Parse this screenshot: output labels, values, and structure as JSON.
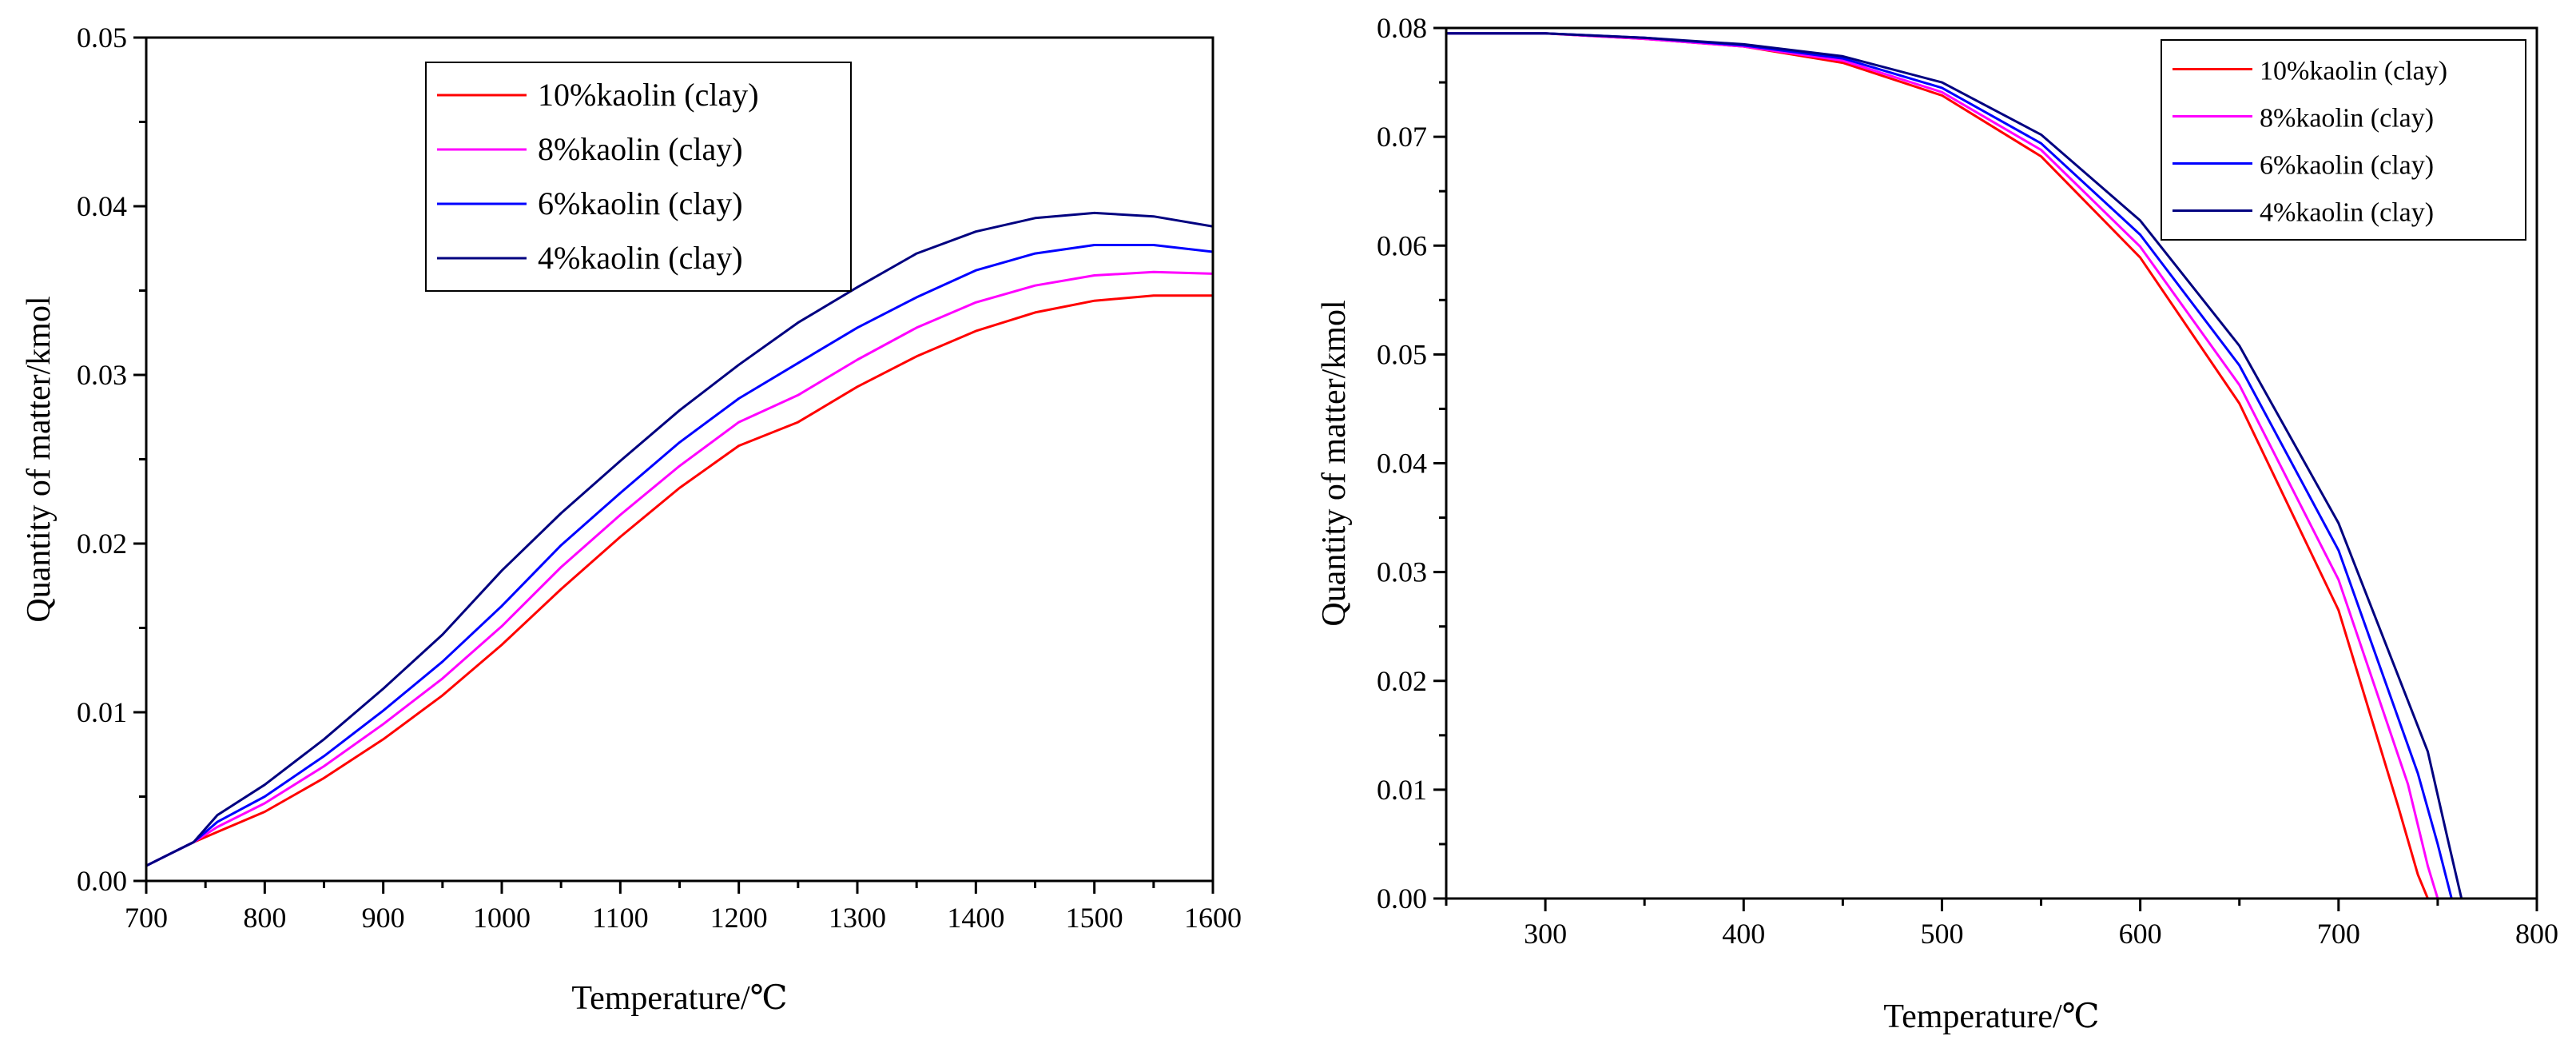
{
  "chart_data": [
    {
      "type": "line",
      "xlabel": "Temperature/℃",
      "ylabel": "Quantity of matter/kmol",
      "xlim": [
        700,
        1600
      ],
      "ylim": [
        0.0,
        0.05
      ],
      "xticks": [
        700,
        800,
        900,
        1000,
        1100,
        1200,
        1300,
        1400,
        1500,
        1600
      ],
      "xtick_labels": [
        "700",
        "800",
        "900",
        "1000",
        "1100",
        "1200",
        "1300",
        "1400",
        "1500",
        "1600"
      ],
      "yticks": [
        0.0,
        0.01,
        0.02,
        0.03,
        0.04,
        0.05
      ],
      "ytick_labels": [
        "0.00",
        "0.01",
        "0.02",
        "0.03",
        "0.04",
        "0.05"
      ],
      "legend_position": "top-center",
      "x": [
        700,
        720,
        740,
        760,
        800,
        850,
        900,
        950,
        1000,
        1050,
        1100,
        1150,
        1200,
        1250,
        1300,
        1350,
        1400,
        1450,
        1500,
        1550,
        1600
      ],
      "series": [
        {
          "name": "10%kaolin (clay)",
          "color": "#ff0000",
          "values": [
            0.0009,
            0.0016,
            0.0023,
            0.0029,
            0.0041,
            0.0061,
            0.0084,
            0.011,
            0.014,
            0.0173,
            0.0204,
            0.0233,
            0.0258,
            0.0272,
            0.0293,
            0.0311,
            0.0326,
            0.0337,
            0.0344,
            0.0347,
            0.0347
          ]
        },
        {
          "name": "8%kaolin (clay)",
          "color": "#ff00ff",
          "values": [
            0.0009,
            0.0016,
            0.0023,
            0.0032,
            0.0046,
            0.0068,
            0.0093,
            0.012,
            0.0151,
            0.0186,
            0.0217,
            0.0246,
            0.0272,
            0.0288,
            0.0309,
            0.0328,
            0.0343,
            0.0353,
            0.0359,
            0.0361,
            0.036
          ]
        },
        {
          "name": "6%kaolin (clay)",
          "color": "#0000ff",
          "values": [
            0.0009,
            0.0016,
            0.0023,
            0.0035,
            0.005,
            0.0074,
            0.0101,
            0.013,
            0.0163,
            0.0199,
            0.023,
            0.026,
            0.0286,
            0.0307,
            0.0328,
            0.0346,
            0.0362,
            0.0372,
            0.0377,
            0.0377,
            0.0373
          ]
        },
        {
          "name": "4%kaolin (clay)",
          "color": "#000080",
          "values": [
            0.0009,
            0.0016,
            0.0023,
            0.0039,
            0.0057,
            0.0084,
            0.0114,
            0.0146,
            0.0184,
            0.0218,
            0.0249,
            0.0279,
            0.0306,
            0.0331,
            0.0352,
            0.0372,
            0.0385,
            0.0393,
            0.0396,
            0.0394,
            0.0388
          ]
        }
      ]
    },
    {
      "type": "line",
      "xlabel": "Temperature/℃",
      "ylabel": "Quantity of matter/kmol",
      "xlim": [
        250,
        800
      ],
      "ylim": [
        0.0,
        0.08
      ],
      "xticks": [
        300,
        400,
        500,
        600,
        700,
        800
      ],
      "xtick_labels": [
        "300",
        "400",
        "500",
        "600",
        "700",
        "800"
      ],
      "yticks": [
        0.0,
        0.01,
        0.02,
        0.03,
        0.04,
        0.05,
        0.06,
        0.07,
        0.08
      ],
      "ytick_labels": [
        "0.00",
        "0.01",
        "0.02",
        "0.03",
        "0.04",
        "0.05",
        "0.06",
        "0.07",
        "0.08"
      ],
      "legend_position": "top-right",
      "series": [
        {
          "name": "10%kaolin (clay)",
          "color": "#ff0000",
          "x": [
            250,
            300,
            350,
            400,
            450,
            500,
            550,
            600,
            650,
            700,
            730,
            740,
            745,
            800
          ],
          "values": [
            0.0795,
            0.0795,
            0.079,
            0.0783,
            0.0768,
            0.0738,
            0.0682,
            0.0589,
            0.0455,
            0.0265,
            0.0085,
            0.0022,
            0.0,
            0.0
          ]
        },
        {
          "name": "8%kaolin (clay)",
          "color": "#ff00ff",
          "x": [
            250,
            300,
            350,
            400,
            450,
            500,
            550,
            600,
            650,
            700,
            735,
            745,
            750,
            800
          ],
          "values": [
            0.0795,
            0.0795,
            0.079,
            0.0783,
            0.077,
            0.0741,
            0.0688,
            0.0599,
            0.0472,
            0.0293,
            0.0105,
            0.003,
            0.0,
            0.0
          ]
        },
        {
          "name": "6%kaolin (clay)",
          "color": "#0000ff",
          "x": [
            250,
            300,
            350,
            400,
            450,
            500,
            550,
            600,
            650,
            700,
            740,
            750,
            757,
            800
          ],
          "values": [
            0.0795,
            0.0795,
            0.0791,
            0.0784,
            0.0772,
            0.0745,
            0.0694,
            0.061,
            0.049,
            0.032,
            0.0115,
            0.005,
            0.0,
            0.0
          ]
        },
        {
          "name": "4%kaolin (clay)",
          "color": "#000080",
          "x": [
            250,
            300,
            350,
            400,
            450,
            500,
            550,
            600,
            650,
            700,
            745,
            755,
            762,
            800
          ],
          "values": [
            0.0795,
            0.0795,
            0.0791,
            0.0785,
            0.0774,
            0.075,
            0.0702,
            0.0623,
            0.0508,
            0.0345,
            0.0135,
            0.0055,
            0.0,
            0.0
          ]
        }
      ]
    }
  ]
}
